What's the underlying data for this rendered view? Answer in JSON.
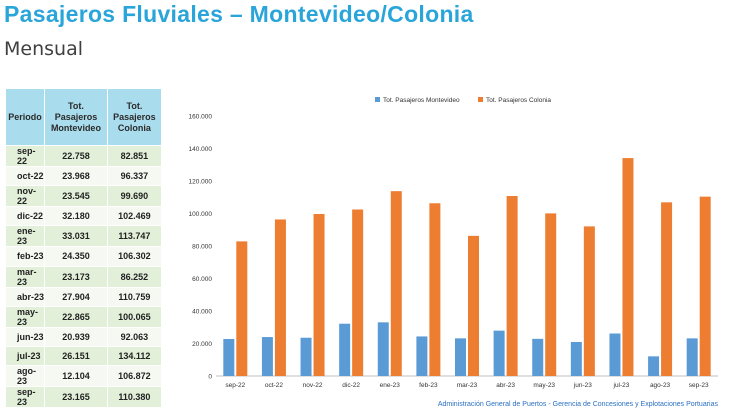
{
  "title": "Pasajeros Fluviales – Montevideo/Colonia",
  "subtitle": "Mensual",
  "table": {
    "headers": [
      "Periodo",
      "Tot. Pasajeros Montevideo",
      "Tot. Pasajeros Colonia"
    ],
    "rows": [
      [
        "sep-22",
        "22.758",
        "82.851"
      ],
      [
        "oct-22",
        "23.968",
        "96.337"
      ],
      [
        "nov-22",
        "23.545",
        "99.690"
      ],
      [
        "dic-22",
        "32.180",
        "102.469"
      ],
      [
        "ene-23",
        "33.031",
        "113.747"
      ],
      [
        "feb-23",
        "24.350",
        "106.302"
      ],
      [
        "mar-23",
        "23.173",
        "86.252"
      ],
      [
        "abr-23",
        "27.904",
        "110.759"
      ],
      [
        "may-23",
        "22.865",
        "100.065"
      ],
      [
        "jun-23",
        "20.939",
        "92.063"
      ],
      [
        "jul-23",
        "26.151",
        "134.112"
      ],
      [
        "ago-23",
        "12.104",
        "106.872"
      ],
      [
        "sep-23",
        "23.165",
        "110.380"
      ]
    ]
  },
  "chart_data": {
    "type": "bar",
    "categories": [
      "sep-22",
      "oct-22",
      "nov-22",
      "dic-22",
      "ene-23",
      "feb-23",
      "mar-23",
      "abr-23",
      "may-23",
      "jun-23",
      "jul-23",
      "ago-23",
      "sep-23"
    ],
    "series": [
      {
        "name": "Tot. Pasajeros Montevideo",
        "color": "#5b9bd5",
        "values": [
          22758,
          23968,
          23545,
          32180,
          33031,
          24350,
          23173,
          27904,
          22865,
          20939,
          26151,
          12104,
          23165
        ]
      },
      {
        "name": "Tot. Pasajeros Colonia",
        "color": "#ed7d31",
        "values": [
          82851,
          96337,
          99690,
          102469,
          113747,
          106302,
          86252,
          110759,
          100065,
          92063,
          134112,
          106872,
          110380
        ]
      }
    ],
    "ylim": [
      0,
      160000
    ],
    "yticks": [
      0,
      20000,
      40000,
      60000,
      80000,
      100000,
      120000,
      140000,
      160000
    ],
    "ytick_labels": [
      "0",
      "20.000",
      "40.000",
      "60.000",
      "80.000",
      "100.000",
      "120.000",
      "140.000",
      "160.000"
    ],
    "legend_position": "top-center",
    "grid": false
  },
  "footer": "Administración General de Puertos  - Gerencia de Concesiones y Explotaciones Portuarias"
}
